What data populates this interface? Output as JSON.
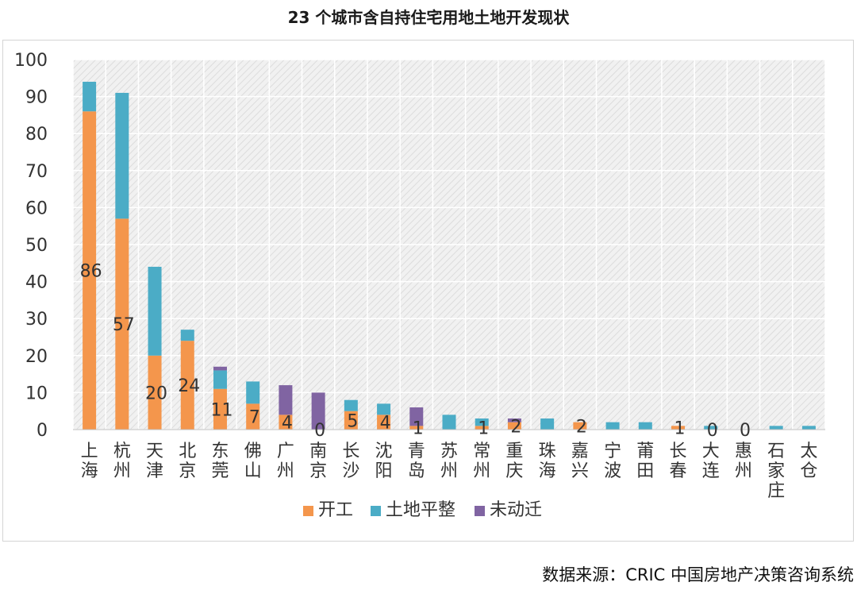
{
  "title": "23 个城市含自持住宅用地土地开发现状",
  "source": "数据来源：CRIC 中国房地产决策咨询系统",
  "colors": {
    "kaigong": "#F4964C",
    "tudi": "#4BACC6",
    "weidongqian": "#8064A2",
    "plot_bg": "#e6e6e6",
    "grid": "#ffffff"
  },
  "chart_data": {
    "type": "bar",
    "stacked": true,
    "title": "23 个城市含自持住宅用地土地开发现状",
    "xlabel": "",
    "ylabel": "",
    "ylim": [
      0,
      100
    ],
    "yticks": [
      0,
      10,
      20,
      30,
      40,
      50,
      60,
      70,
      80,
      90,
      100
    ],
    "grid": true,
    "legend_position": "bottom",
    "categories": [
      "上海",
      "杭州",
      "天津",
      "北京",
      "东莞",
      "佛山",
      "广州",
      "南京",
      "长沙",
      "沈阳",
      "青岛",
      "苏州",
      "常州",
      "重庆",
      "珠海",
      "嘉兴",
      "宁波",
      "莆田",
      "长春",
      "大连",
      "惠州",
      "石家庄",
      "太仓"
    ],
    "series": [
      {
        "name": "开工",
        "color": "#F4964C",
        "values": [
          86,
          57,
          20,
          24,
          11,
          7,
          4,
          0,
          5,
          4,
          1,
          0,
          1,
          2,
          0,
          2,
          0,
          0,
          1,
          0,
          0,
          0,
          0
        ]
      },
      {
        "name": "土地平整",
        "color": "#4BACC6",
        "values": [
          8,
          34,
          24,
          3,
          5,
          6,
          0,
          0,
          3,
          3,
          0,
          4,
          2,
          0,
          3,
          0,
          2,
          2,
          0,
          1,
          0,
          1,
          1
        ]
      },
      {
        "name": "未动迁",
        "color": "#8064A2",
        "values": [
          0,
          0,
          0,
          0,
          1,
          0,
          8,
          10,
          0,
          0,
          5,
          0,
          0,
          1,
          0,
          0,
          0,
          0,
          0,
          0,
          0,
          0,
          0
        ]
      }
    ],
    "data_labels": [
      "86",
      "57",
      "20",
      "24",
      "11",
      "7",
      "4",
      "0",
      "5",
      "4",
      "1",
      "",
      "1",
      "2",
      "",
      "2",
      "",
      "",
      "1",
      "0",
      "0",
      "",
      ""
    ]
  }
}
